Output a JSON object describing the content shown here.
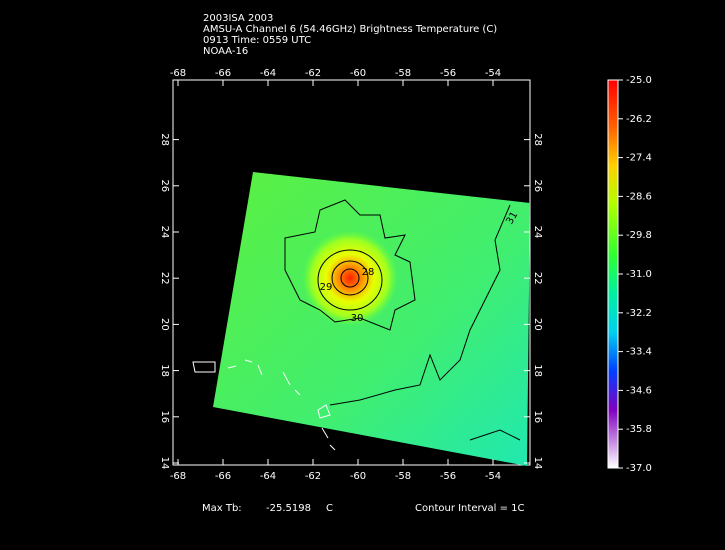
{
  "header": {
    "lines": [
      "2003ISA 2003",
      "AMSU-A Channel 6 (54.46GHz) Brightness Temperature (C)",
      "0913 Time: 0559 UTC",
      "NOAA-16"
    ]
  },
  "map": {
    "xticks": [
      -68,
      -66,
      -64,
      -62,
      -60,
      -58,
      -56,
      -54
    ],
    "yticks": [
      14,
      16,
      18,
      20,
      22,
      24,
      26,
      28
    ],
    "contour_labels": [
      "28",
      "29",
      "30",
      "31"
    ]
  },
  "colorbar": {
    "lim": [
      -37,
      -25
    ],
    "ticks": [
      {
        "value": -25,
        "label": "-25.0"
      },
      {
        "value": -26.2,
        "label": "-26.2"
      },
      {
        "value": -27.4,
        "label": "-27.4"
      },
      {
        "value": -28.6,
        "label": "-28.6"
      },
      {
        "value": -29.8,
        "label": "-29.8"
      },
      {
        "value": -31,
        "label": "-31.0"
      },
      {
        "value": -32.2,
        "label": "-32.2"
      },
      {
        "value": -33.4,
        "label": "-33.4"
      },
      {
        "value": -34.6,
        "label": "-34.6"
      },
      {
        "value": -35.8,
        "label": "-35.8"
      },
      {
        "value": -37,
        "label": "-37.0"
      }
    ]
  },
  "footer": {
    "max_label": "Max Tb:",
    "max_value": -25.5198,
    "max_unit": "C",
    "contour_interval": "Contour Interval = 1C"
  }
}
